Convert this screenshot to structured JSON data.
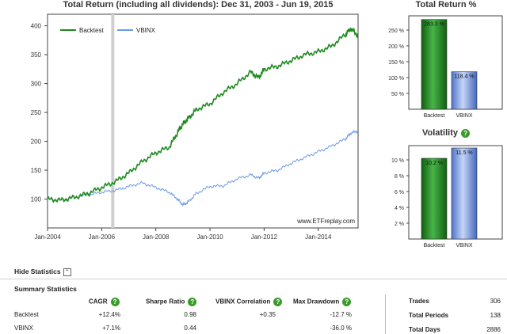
{
  "main_chart": {
    "title": "Total Return (including all dividends): Dec 31, 2003 - Jun 19, 2015",
    "legend": [
      "Backtest",
      "VBINX"
    ],
    "watermark": "www.ETFreplay.com",
    "colors": {
      "backtest": "#1e8a1e",
      "vbinx": "#6b9be8"
    }
  },
  "chart_data": [
    {
      "type": "line",
      "title": "Total Return (including all dividends): Dec 31, 2003 - Jun 19, 2015",
      "xlabel": "",
      "ylabel": "",
      "x_ticks": [
        "Jan-2004",
        "Jan-2006",
        "Jan-2008",
        "Jan-2010",
        "Jan-2012",
        "Jan-2014"
      ],
      "y_ticks": [
        100,
        150,
        200,
        250,
        300,
        350,
        400
      ],
      "ylim": [
        50,
        420
      ],
      "xlim": [
        2004.0,
        2015.47
      ],
      "grid": false,
      "legend_position": "top-left",
      "x": [
        2004.0,
        2004.5,
        2005.0,
        2005.5,
        2006.0,
        2006.5,
        2007.0,
        2007.5,
        2008.0,
        2008.5,
        2008.8,
        2009.0,
        2009.2,
        2009.5,
        2010.0,
        2010.5,
        2011.0,
        2011.5,
        2011.8,
        2012.0,
        2012.5,
        2013.0,
        2013.5,
        2014.0,
        2014.5,
        2015.0,
        2015.2,
        2015.47
      ],
      "series": [
        {
          "name": "Backtest",
          "values": [
            100,
            98,
            103,
            110,
            120,
            130,
            145,
            165,
            180,
            190,
            215,
            230,
            240,
            255,
            265,
            285,
            300,
            320,
            310,
            325,
            330,
            340,
            350,
            355,
            365,
            385,
            395,
            383
          ]
        },
        {
          "name": "VBINX",
          "values": [
            100,
            99,
            103,
            107,
            112,
            115,
            122,
            128,
            120,
            112,
            100,
            90,
            95,
            110,
            122,
            123,
            135,
            142,
            136,
            145,
            150,
            162,
            172,
            182,
            192,
            204,
            214,
            218
          ]
        }
      ]
    },
    {
      "type": "bar",
      "title": "Total Return %",
      "categories": [
        "Backtest",
        "VBINX"
      ],
      "values": [
        283.3,
        118.4
      ],
      "data_labels": [
        "283.3 %",
        "118.4 %"
      ],
      "y_ticks": [
        "50 %",
        "100 %",
        "150 %",
        "200 %",
        "250 %"
      ],
      "ylim": [
        0,
        295
      ]
    },
    {
      "type": "bar",
      "title": "Volatility",
      "categories": [
        "Backtest",
        "VBINX"
      ],
      "values": [
        10.2,
        11.5
      ],
      "data_labels": [
        "10.2 %",
        "11.5 %"
      ],
      "y_ticks": [
        "2 %",
        "4 %",
        "6 %",
        "8 %",
        "10 %"
      ],
      "ylim": [
        0,
        11.8
      ]
    }
  ],
  "stats": {
    "hide_label": "Hide Statistics",
    "summary_title": "Summary Statistics",
    "columns": [
      "CAGR",
      "Sharpe Ratio",
      "VBINX Correlation",
      "Max Drawdown"
    ],
    "rows": [
      {
        "name": "Backtest",
        "cagr": "+12.4%",
        "sharpe": "0.98",
        "corr": "+0.35",
        "maxdd": "-12.7 %"
      },
      {
        "name": "VBINX",
        "cagr": "+7.1%",
        "sharpe": "0.44",
        "corr": "",
        "maxdd": "-36.0 %"
      }
    ],
    "right": [
      {
        "label": "Trades",
        "value": "306"
      },
      {
        "label": "Total Periods",
        "value": "138"
      },
      {
        "label": "Total Days",
        "value": "2886"
      }
    ]
  }
}
